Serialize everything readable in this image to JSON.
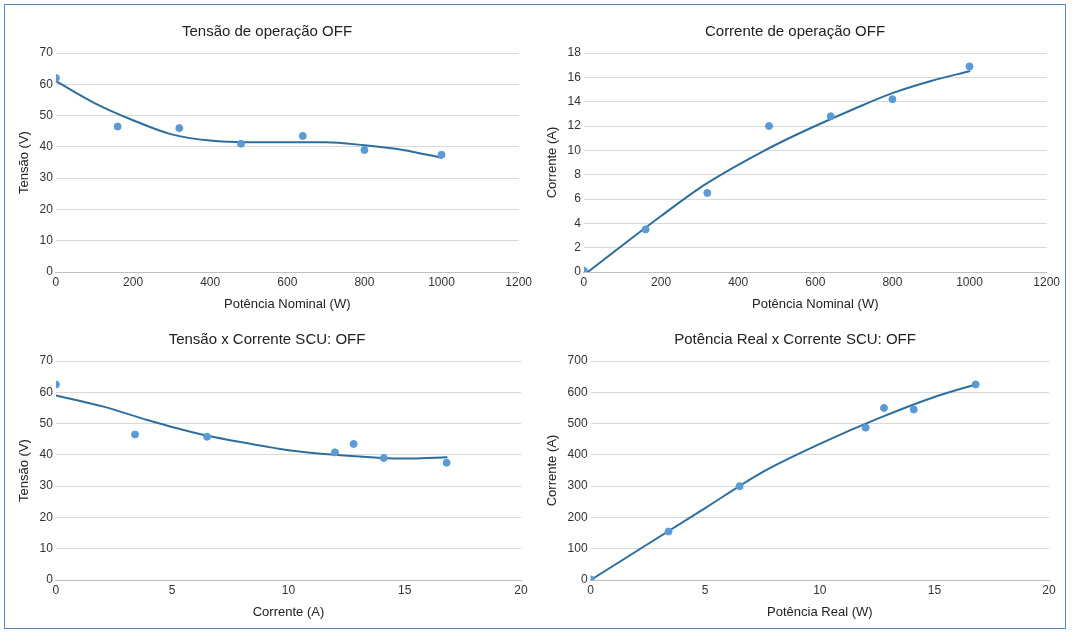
{
  "chart_data": [
    {
      "type": "scatter",
      "title": "Tensão de operação OFF",
      "xlabel": "Potência Nominal (W)",
      "ylabel": "Tensão (V)",
      "x": [
        0,
        160,
        320,
        480,
        640,
        800,
        1000
      ],
      "xlim": [
        0,
        1200
      ],
      "xticks": [
        0,
        200,
        400,
        600,
        800,
        1000,
        1200
      ],
      "ylim": [
        0,
        70
      ],
      "yticks": [
        0,
        10,
        20,
        30,
        40,
        50,
        60,
        70
      ],
      "grid": "y",
      "series": [
        {
          "marker": "circle",
          "color": "#5b9bd5",
          "values": [
            62,
            46.5,
            46,
            41,
            43.5,
            39,
            37.5
          ]
        },
        {
          "type": "line",
          "marker": "none",
          "color": "#2e6e9e",
          "x": [
            0,
            100,
            200,
            300,
            400,
            500,
            600,
            700,
            800,
            900,
            1000
          ],
          "values": [
            61,
            54,
            48.5,
            44,
            42,
            41.5,
            41.5,
            41.5,
            40.5,
            39,
            36.5
          ]
        }
      ]
    },
    {
      "type": "scatter",
      "title": "Corrente de operação OFF",
      "xlabel": "Potência Nominal (W)",
      "ylabel": "Corrente (A)",
      "x": [
        0,
        160,
        320,
        480,
        640,
        800,
        1000
      ],
      "xlim": [
        0,
        1200
      ],
      "xticks": [
        0,
        200,
        400,
        600,
        800,
        1000,
        1200
      ],
      "ylim": [
        0,
        18
      ],
      "yticks": [
        0,
        2,
        4,
        6,
        8,
        10,
        12,
        14,
        16,
        18
      ],
      "grid": "y",
      "series": [
        {
          "marker": "circle",
          "color": "#5b9bd5",
          "values": [
            0.1,
            3.5,
            6.5,
            12,
            12.8,
            14.2,
            16.9
          ]
        },
        {
          "type": "line",
          "marker": "none",
          "color": "#2e6e9e",
          "x": [
            10,
            100,
            200,
            300,
            400,
            500,
            600,
            700,
            800,
            900,
            1000
          ],
          "values": [
            0,
            2.2,
            4.6,
            6.9,
            8.8,
            10.5,
            12,
            13.4,
            14.7,
            15.7,
            16.5
          ]
        }
      ]
    },
    {
      "type": "scatter",
      "title": "Tensão x Corrente SCU: OFF",
      "xlabel": "Corrente (A)",
      "ylabel": "Tensão (V)",
      "x": [
        0,
        3.4,
        6.5,
        12,
        12.8,
        14.1,
        16.8
      ],
      "xlim": [
        0,
        20
      ],
      "xticks": [
        0,
        5,
        10,
        15,
        20
      ],
      "ylim": [
        0,
        70
      ],
      "yticks": [
        0,
        10,
        20,
        30,
        40,
        50,
        60,
        70
      ],
      "grid": "y",
      "series": [
        {
          "marker": "circle",
          "color": "#5b9bd5",
          "values": [
            62.5,
            46.5,
            45.8,
            40.8,
            43.5,
            39,
            37.5
          ]
        },
        {
          "type": "line",
          "marker": "none",
          "color": "#2e6e9e",
          "x": [
            0,
            2,
            4,
            6,
            8,
            10,
            12,
            14,
            15,
            16,
            16.8
          ],
          "values": [
            59,
            55.5,
            51,
            47,
            44,
            41.5,
            40,
            39,
            38.8,
            39,
            39.2
          ]
        }
      ]
    },
    {
      "type": "scatter",
      "title": "Potência Real x Corrente SCU: OFF",
      "xlabel": "Potência Real (W)",
      "ylabel": "Corrente (A)",
      "x": [
        0,
        3.4,
        6.5,
        12,
        12.8,
        14.1,
        16.8
      ],
      "xlim": [
        0,
        20
      ],
      "xticks": [
        0,
        5,
        10,
        15,
        20
      ],
      "ylim": [
        0,
        700
      ],
      "yticks": [
        0,
        100,
        200,
        300,
        400,
        500,
        600,
        700
      ],
      "grid": "y",
      "series": [
        {
          "marker": "circle",
          "color": "#5b9bd5",
          "values": [
            2,
            155,
            300,
            487,
            550,
            545,
            625
          ]
        },
        {
          "type": "line",
          "marker": "none",
          "color": "#2e6e9e",
          "x": [
            0,
            2.5,
            5,
            7.5,
            10,
            12.5,
            15,
            16.8
          ],
          "values": [
            0,
            115,
            230,
            345,
            435,
            515,
            585,
            625
          ]
        }
      ]
    }
  ]
}
